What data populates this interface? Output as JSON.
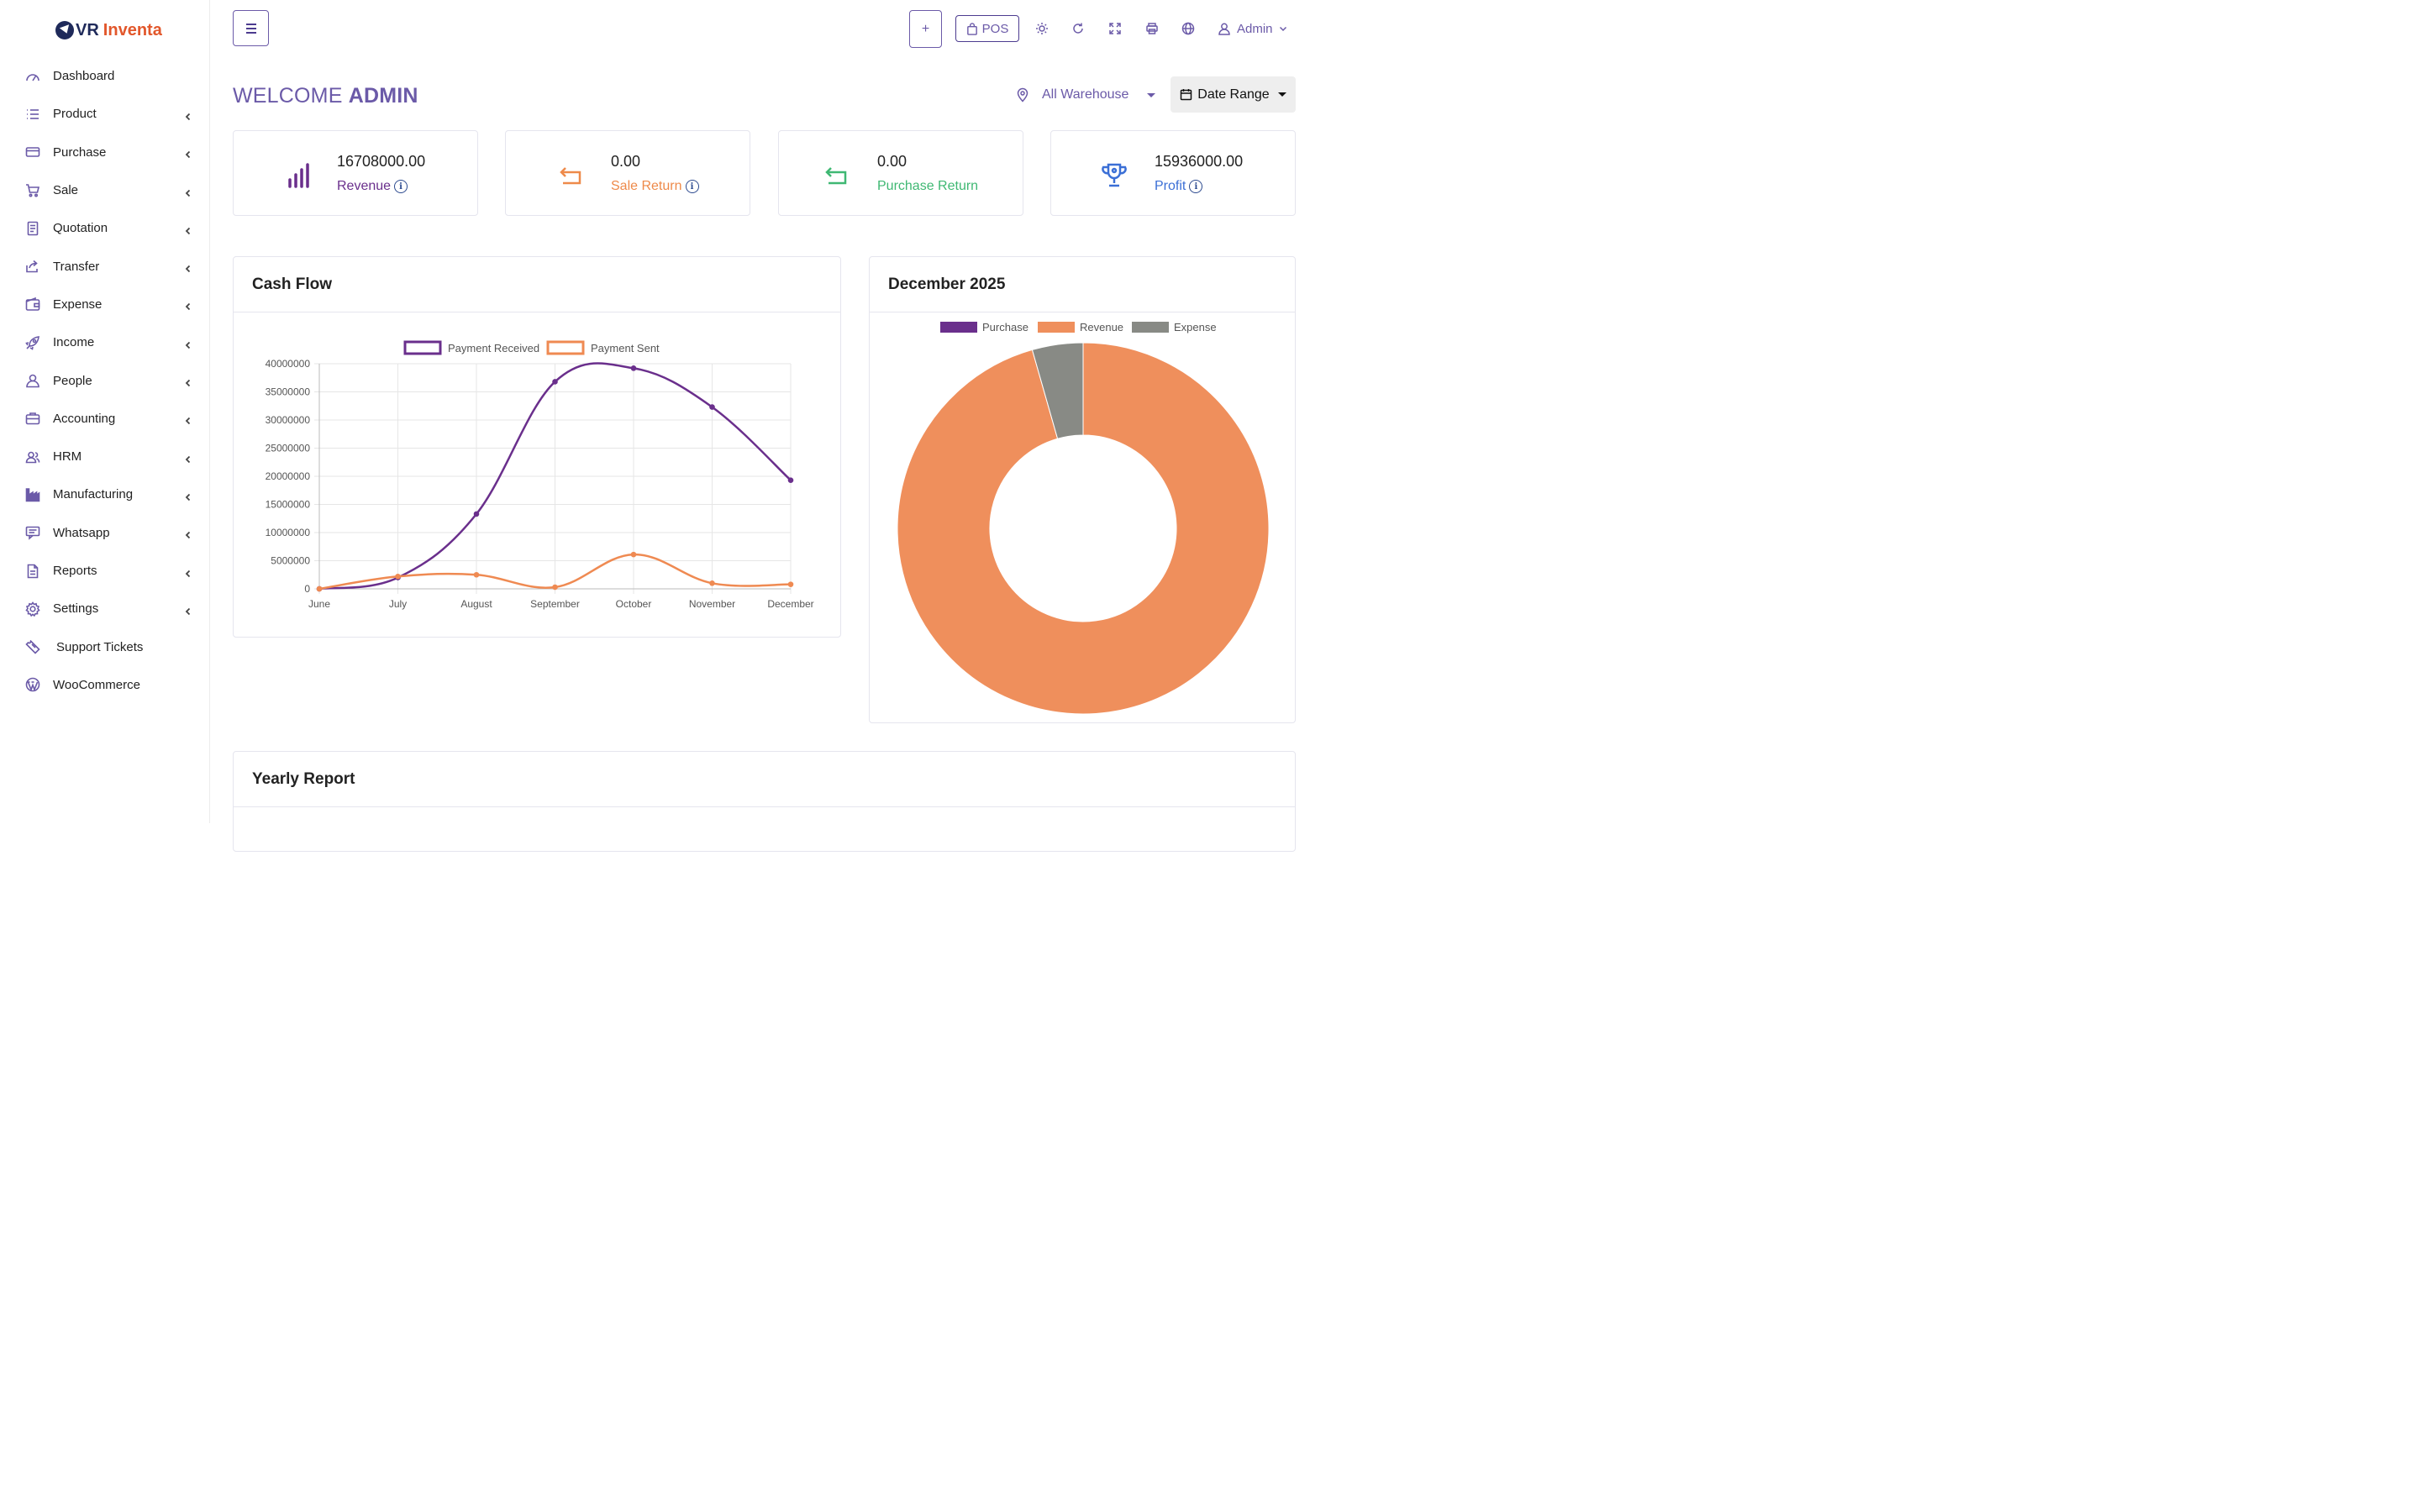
{
  "brand": {
    "part1": "VR",
    "part2": "Inventa"
  },
  "sidebar": {
    "items": [
      {
        "label": "Dashboard",
        "icon": "gauge-icon",
        "chevron": false
      },
      {
        "label": "Product",
        "icon": "list-icon",
        "chevron": true
      },
      {
        "label": "Purchase",
        "icon": "credit-card-icon",
        "chevron": true
      },
      {
        "label": "Sale",
        "icon": "cart-icon",
        "chevron": true
      },
      {
        "label": "Quotation",
        "icon": "document-icon",
        "chevron": true
      },
      {
        "label": "Transfer",
        "icon": "share-icon",
        "chevron": true
      },
      {
        "label": "Expense",
        "icon": "wallet-icon",
        "chevron": true
      },
      {
        "label": "Income",
        "icon": "rocket-icon",
        "chevron": true
      },
      {
        "label": "People",
        "icon": "user-icon",
        "chevron": true
      },
      {
        "label": "Accounting",
        "icon": "briefcase-icon",
        "chevron": true
      },
      {
        "label": "HRM",
        "icon": "users-icon",
        "chevron": true
      },
      {
        "label": "Manufacturing",
        "icon": "factory-icon",
        "chevron": true
      },
      {
        "label": "Whatsapp",
        "icon": "chat-icon",
        "chevron": true
      },
      {
        "label": "Reports",
        "icon": "file-icon",
        "chevron": true
      },
      {
        "label": "Settings",
        "icon": "gear-icon",
        "chevron": true
      },
      {
        "label": "Support Tickets",
        "icon": "ticket-icon",
        "chevron": false
      },
      {
        "label": "WooCommerce",
        "icon": "wordpress-icon",
        "chevron": false
      }
    ]
  },
  "header": {
    "add_label": "+",
    "pos_label": "POS",
    "icons": [
      "sun-icon",
      "refresh-icon",
      "fullscreen-icon",
      "printer-icon",
      "globe-icon"
    ],
    "user_label": "Admin"
  },
  "welcome": {
    "prefix": "WELCOME",
    "name": "ADMIN"
  },
  "filters": {
    "warehouse": "All Warehouse",
    "date_range": "Date Range"
  },
  "stats": [
    {
      "value": "16708000.00",
      "label": "Revenue",
      "color": "#6a2f8c",
      "icon": "bar-chart-icon",
      "info": true
    },
    {
      "value": "0.00",
      "label": "Sale Return",
      "color": "#ee8a4a",
      "icon": "return-arrow-icon",
      "info": true
    },
    {
      "value": "0.00",
      "label": "Purchase Return",
      "color": "#3fb873",
      "icon": "return-arrow-icon",
      "info": false
    },
    {
      "value": "15936000.00",
      "label": "Profit",
      "color": "#3b6fd6",
      "icon": "trophy-icon",
      "info": true
    }
  ],
  "cashflow": {
    "title": "Cash Flow"
  },
  "donut": {
    "title": "December 2025"
  },
  "yearly": {
    "title": "Yearly Report"
  },
  "colors": {
    "accent": "#6b5aa8",
    "purchase": "#6a2f8c",
    "revenue": "#ef8f5c",
    "expense": "#888a85"
  },
  "chart_data": [
    {
      "type": "line",
      "title": "Cash Flow",
      "categories": [
        "June",
        "July",
        "August",
        "September",
        "October",
        "November",
        "December"
      ],
      "series": [
        {
          "name": "Payment Received",
          "color": "#6a2f8c",
          "values": [
            0,
            2000000,
            13300000,
            36800000,
            39200000,
            32300000,
            19300000
          ]
        },
        {
          "name": "Payment Sent",
          "color": "#ef8a52",
          "values": [
            0,
            2200000,
            2500000,
            300000,
            6100000,
            1000000,
            800000
          ]
        }
      ],
      "ylim": [
        0,
        40000000
      ],
      "yticks": [
        "0",
        "5000000",
        "10000000",
        "15000000",
        "20000000",
        "25000000",
        "30000000",
        "35000000",
        "40000000"
      ],
      "legend": "top",
      "grid": true
    },
    {
      "type": "pie",
      "title": "December 2025",
      "labels": [
        "Purchase",
        "Revenue",
        "Expense"
      ],
      "values": [
        0,
        16708000,
        772000
      ],
      "colors": [
        "#6a2f8c",
        "#ef8f5c",
        "#888a85"
      ],
      "legend": "top"
    }
  ]
}
